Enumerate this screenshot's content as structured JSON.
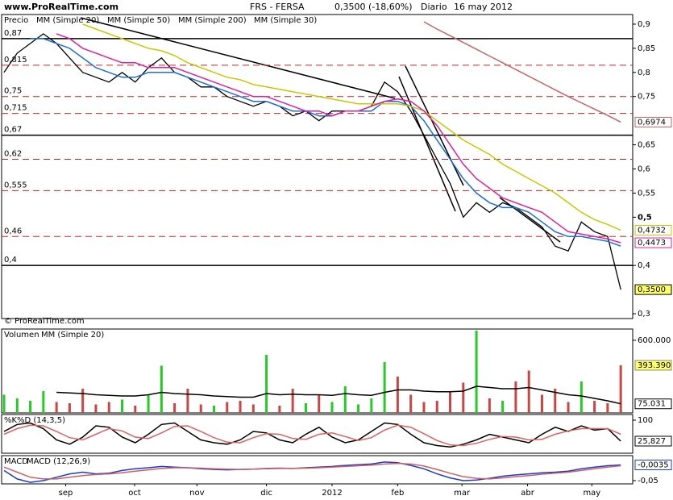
{
  "header": {
    "site": "www.ProRealTime.com",
    "symbol": "FRS - FERSA",
    "quote": "0,3500 (-18,60%)",
    "period": "Diario",
    "date": "16 may 2012",
    "copyright": "© ProRealTime.com"
  },
  "chart_data": [
    {
      "type": "line",
      "ylim": [
        0.29,
        0.92
      ],
      "yticks": [
        {
          "value": 0.9,
          "label": "0,9"
        },
        {
          "value": 0.85,
          "label": "0,85"
        },
        {
          "value": 0.8,
          "label": "0,8"
        },
        {
          "value": 0.75,
          "label": "0,75"
        },
        {
          "value": 0.65,
          "label": "0,65"
        },
        {
          "value": 0.6,
          "label": "0,6"
        },
        {
          "value": 0.55,
          "label": "0,55"
        },
        {
          "value": 0.5,
          "label": "0,5"
        },
        {
          "value": 0.4,
          "label": "0,4"
        },
        {
          "value": 0.3,
          "label": "0,3"
        }
      ],
      "levels": [
        {
          "value": 0.87,
          "label": "0,87",
          "style": "solid"
        },
        {
          "value": 0.815,
          "label": "0,815",
          "style": "dashed"
        },
        {
          "value": 0.75,
          "label": "0,75",
          "style": "dashed"
        },
        {
          "value": 0.715,
          "label": "0,715",
          "style": "dashed"
        },
        {
          "value": 0.67,
          "label": "0,67",
          "style": "solid"
        },
        {
          "value": 0.62,
          "label": "0,62",
          "style": "dashed"
        },
        {
          "value": 0.555,
          "label": "0,555",
          "style": "dashed"
        },
        {
          "value": 0.46,
          "label": "0,46",
          "style": "dashed"
        },
        {
          "value": 0.4,
          "label": "0,4",
          "style": "solid"
        }
      ],
      "series": [
        {
          "name": "Precio",
          "color": "#000000",
          "box_color": "#ffff66",
          "last_label": "0,3500",
          "values": [
            0.8,
            0.84,
            0.86,
            0.88,
            0.86,
            0.83,
            0.8,
            0.79,
            0.78,
            0.8,
            0.78,
            0.81,
            0.83,
            0.8,
            0.79,
            0.77,
            0.77,
            0.75,
            0.74,
            0.73,
            0.74,
            0.73,
            0.71,
            0.72,
            0.7,
            0.72,
            0.72,
            0.72,
            0.73,
            0.78,
            0.76,
            0.72,
            0.67,
            0.62,
            0.57,
            0.5,
            0.53,
            0.51,
            0.53,
            0.52,
            0.5,
            0.48,
            0.44,
            0.43,
            0.49,
            0.47,
            0.46,
            0.35
          ]
        },
        {
          "name": "MM (Simple 20)",
          "color": "#1a6fe0",
          "values": [
            null,
            null,
            0.87,
            0.87,
            0.86,
            0.85,
            0.83,
            0.81,
            0.8,
            0.79,
            0.79,
            0.8,
            0.8,
            0.8,
            0.79,
            0.78,
            0.77,
            0.76,
            0.75,
            0.74,
            0.74,
            0.73,
            0.72,
            0.72,
            0.71,
            0.71,
            0.72,
            0.72,
            0.72,
            0.74,
            0.74,
            0.73,
            0.7,
            0.66,
            0.62,
            0.58,
            0.55,
            0.53,
            0.52,
            0.52,
            0.51,
            0.49,
            0.47,
            0.46,
            0.46,
            0.455,
            0.45,
            0.44
          ]
        },
        {
          "name": "MM (Simple 50)",
          "color": "#c8c800",
          "last_label": "0,4732",
          "values": [
            null,
            null,
            null,
            null,
            null,
            null,
            0.9,
            0.89,
            0.88,
            0.87,
            0.86,
            0.85,
            0.845,
            0.835,
            0.82,
            0.81,
            0.8,
            0.79,
            0.785,
            0.775,
            0.77,
            0.765,
            0.76,
            0.755,
            0.75,
            0.745,
            0.74,
            0.735,
            0.735,
            0.735,
            0.735,
            0.73,
            0.72,
            0.7,
            0.68,
            0.66,
            0.645,
            0.63,
            0.61,
            0.595,
            0.58,
            0.565,
            0.55,
            0.53,
            0.51,
            0.495,
            0.485,
            0.473
          ]
        },
        {
          "name": "MM (Simple 200)",
          "color": "#c86464",
          "last_label": "0,6974",
          "values": [
            null,
            null,
            null,
            null,
            null,
            null,
            null,
            null,
            null,
            null,
            null,
            null,
            null,
            null,
            null,
            null,
            null,
            null,
            null,
            null,
            null,
            null,
            null,
            null,
            null,
            null,
            null,
            null,
            null,
            null,
            null,
            null,
            0.905,
            0.89,
            0.876,
            0.862,
            0.848,
            0.834,
            0.82,
            0.806,
            0.792,
            0.778,
            0.764,
            0.75,
            0.737,
            0.724,
            0.711,
            0.697
          ]
        },
        {
          "name": "MM (Simple 30)",
          "color": "#e020a0",
          "last_label": "0,4473",
          "values": [
            null,
            null,
            null,
            null,
            0.88,
            0.87,
            0.85,
            0.84,
            0.83,
            0.82,
            0.82,
            0.81,
            0.81,
            0.81,
            0.8,
            0.79,
            0.78,
            0.77,
            0.76,
            0.75,
            0.75,
            0.74,
            0.73,
            0.72,
            0.72,
            0.71,
            0.72,
            0.72,
            0.73,
            0.74,
            0.745,
            0.74,
            0.72,
            0.69,
            0.65,
            0.61,
            0.58,
            0.56,
            0.54,
            0.53,
            0.52,
            0.51,
            0.49,
            0.47,
            0.465,
            0.46,
            0.455,
            0.447
          ]
        }
      ]
    },
    {
      "type": "bar",
      "ylim": [
        0,
        693000
      ],
      "yticks": [
        {
          "value": 600000,
          "label": "600.000"
        }
      ],
      "series": [
        {
          "name": "Volumen",
          "mark": "bar",
          "up_color": "#22cc22",
          "down_color": "#cc4444",
          "box_color": "#ffff66",
          "last_label": "393.390",
          "values": [
            150000,
            120000,
            100000,
            180000,
            90000,
            80000,
            200000,
            70000,
            90000,
            110000,
            60000,
            150000,
            390000,
            80000,
            200000,
            70000,
            60000,
            90000,
            100000,
            70000,
            480000,
            60000,
            200000,
            80000,
            150000,
            90000,
            220000,
            70000,
            120000,
            420000,
            300000,
            150000,
            90000,
            100000,
            180000,
            250000,
            680000,
            120000,
            100000,
            260000,
            350000,
            150000,
            200000,
            90000,
            260000,
            100000,
            80000,
            393390
          ]
        },
        {
          "name": "MM (Simple 20)",
          "mark": "line",
          "color": "#000000",
          "last_label": "75.031",
          "values": [
            null,
            null,
            null,
            null,
            170000,
            165000,
            160000,
            150000,
            145000,
            140000,
            140000,
            150000,
            170000,
            160000,
            155000,
            150000,
            140000,
            135000,
            130000,
            130000,
            160000,
            150000,
            155000,
            150000,
            150000,
            145000,
            160000,
            150000,
            145000,
            170000,
            190000,
            190000,
            180000,
            175000,
            175000,
            180000,
            220000,
            210000,
            200000,
            200000,
            210000,
            190000,
            170000,
            150000,
            140000,
            120000,
            100000,
            75031
          ]
        }
      ]
    },
    {
      "type": "line",
      "ylim": [
        -17,
        120
      ],
      "yticks": [
        100
      ],
      "series": [
        {
          "name": "%K",
          "color": "#000000",
          "last_label": "25,827",
          "values": [
            60,
            85,
            90,
            70,
            30,
            15,
            40,
            80,
            75,
            40,
            20,
            50,
            85,
            90,
            60,
            30,
            20,
            15,
            30,
            60,
            55,
            30,
            20,
            50,
            75,
            40,
            20,
            30,
            60,
            90,
            85,
            50,
            20,
            10,
            5,
            15,
            30,
            50,
            40,
            30,
            20,
            50,
            75,
            60,
            80,
            65,
            70,
            25.827
          ]
        },
        {
          "name": "%D (14,3,5)",
          "color": "#e06060",
          "values": [
            50,
            70,
            82,
            80,
            60,
            38,
            30,
            50,
            70,
            62,
            40,
            35,
            55,
            78,
            80,
            60,
            38,
            22,
            20,
            38,
            52,
            50,
            35,
            32,
            50,
            55,
            42,
            28,
            38,
            65,
            82,
            75,
            52,
            28,
            12,
            10,
            18,
            32,
            42,
            40,
            30,
            32,
            50,
            62,
            70,
            70,
            70,
            50
          ]
        }
      ]
    },
    {
      "type": "line",
      "ylim": [
        -0.0595,
        0.0238
      ],
      "yticks": [
        {
          "value": -0.05,
          "label": "-0,05"
        }
      ],
      "xticks": [
        {
          "value": 4.7,
          "label": "sep"
        },
        {
          "value": 9.95,
          "label": "oct"
        },
        {
          "value": 14.7,
          "label": "nov"
        },
        {
          "value": 20,
          "label": "dic"
        },
        {
          "value": 25,
          "label": "2012"
        },
        {
          "value": 30,
          "label": "feb"
        },
        {
          "value": 34.9,
          "label": "mar"
        },
        {
          "value": 39.9,
          "label": "abr"
        },
        {
          "value": 44.8,
          "label": "may"
        }
      ],
      "series": [
        {
          "name": "MACD",
          "color": "#1a3ad0",
          "last_label": "-0,0035",
          "values": [
            -0.02,
            -0.045,
            -0.055,
            -0.05,
            -0.04,
            -0.03,
            -0.025,
            -0.03,
            -0.028,
            -0.02,
            -0.015,
            -0.012,
            -0.008,
            -0.01,
            -0.012,
            -0.015,
            -0.017,
            -0.018,
            -0.017,
            -0.016,
            -0.014,
            -0.013,
            -0.014,
            -0.012,
            -0.01,
            -0.008,
            -0.005,
            -0.003,
            -0.001,
            0.005,
            0.003,
            -0.005,
            -0.015,
            -0.03,
            -0.042,
            -0.05,
            -0.048,
            -0.043,
            -0.037,
            -0.033,
            -0.03,
            -0.027,
            -0.025,
            -0.022,
            -0.015,
            -0.01,
            -0.006,
            -0.0035
          ]
        },
        {
          "name": "MACD (12,26,9)",
          "color": "#d06060",
          "values": [
            -0.01,
            -0.025,
            -0.04,
            -0.045,
            -0.045,
            -0.04,
            -0.035,
            -0.032,
            -0.03,
            -0.027,
            -0.022,
            -0.018,
            -0.014,
            -0.012,
            -0.012,
            -0.013,
            -0.015,
            -0.016,
            -0.017,
            -0.016,
            -0.015,
            -0.014,
            -0.014,
            -0.013,
            -0.012,
            -0.01,
            -0.008,
            -0.006,
            -0.004,
            -0.001,
            0.001,
            -0.001,
            -0.007,
            -0.017,
            -0.028,
            -0.038,
            -0.043,
            -0.045,
            -0.042,
            -0.038,
            -0.035,
            -0.031,
            -0.028,
            -0.025,
            -0.02,
            -0.015,
            -0.01,
            -0.006
          ]
        }
      ]
    }
  ]
}
